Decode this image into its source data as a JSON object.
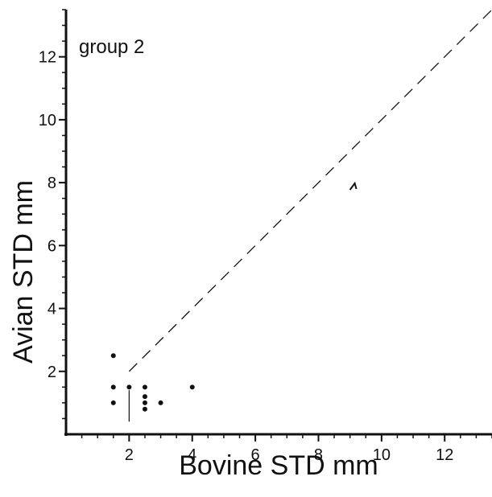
{
  "chart_data": {
    "type": "scatter",
    "annotation": "group 2",
    "xlabel": "Bovine STD mm",
    "ylabel": "Avian STD mm",
    "xlim": [
      0,
      13.5
    ],
    "ylim": [
      0,
      13.5
    ],
    "x_ticks": [
      2,
      4,
      6,
      8,
      10,
      12
    ],
    "y_ticks": [
      2,
      4,
      6,
      8,
      10,
      12
    ],
    "minor_tick_step": 0.5,
    "grid": false,
    "series": [
      {
        "points": [
          {
            "x": 1.5,
            "y": 2.5
          },
          {
            "x": 1.5,
            "y": 1.5
          },
          {
            "x": 1.5,
            "y": 1.0
          },
          {
            "x": 2.0,
            "y": 1.5
          },
          {
            "x": 2.5,
            "y": 1.5
          },
          {
            "x": 2.5,
            "y": 1.2
          },
          {
            "x": 2.5,
            "y": 1.0
          },
          {
            "x": 2.5,
            "y": 0.8
          },
          {
            "x": 3.0,
            "y": 1.0
          },
          {
            "x": 4.0,
            "y": 1.5
          }
        ]
      }
    ],
    "reference_line": {
      "style": "dashed",
      "from": [
        2,
        2
      ],
      "to": [
        13.5,
        13.5
      ]
    },
    "vertical_stem": {
      "x": 2.0,
      "y_from": 0.4,
      "y_to": 1.4
    },
    "arrow_mark": {
      "x": 9.1,
      "y": 7.9
    }
  }
}
